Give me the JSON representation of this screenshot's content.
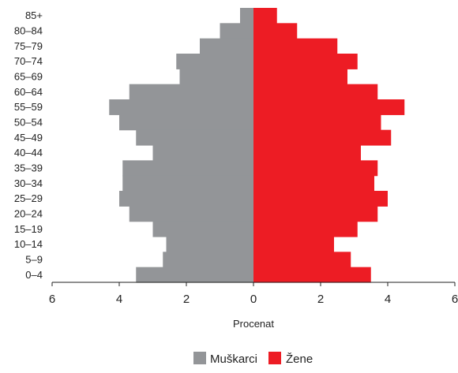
{
  "chart_data": {
    "type": "bar",
    "orientation": "horizontal",
    "layout": "population-pyramid",
    "categories": [
      "85+",
      "80–84",
      "75–79",
      "70–74",
      "65–69",
      "60–64",
      "55–59",
      "50–54",
      "45–49",
      "40–44",
      "35–39",
      "30–34",
      "25–29",
      "20–24",
      "15–19",
      "10–14",
      "5–9",
      "0–4"
    ],
    "series": [
      {
        "name": "Muškarci",
        "color": "#939598",
        "side": "left",
        "values": [
          0.4,
          1.0,
          1.6,
          2.3,
          2.2,
          3.7,
          4.3,
          4.0,
          3.5,
          3.0,
          3.9,
          3.9,
          4.0,
          3.7,
          3.0,
          2.6,
          2.7,
          3.5
        ]
      },
      {
        "name": "Žene",
        "color": "#ed1c24",
        "side": "right",
        "values": [
          0.7,
          1.3,
          2.5,
          3.1,
          2.8,
          3.7,
          4.5,
          3.8,
          4.1,
          3.2,
          3.7,
          3.6,
          4.0,
          3.7,
          3.1,
          2.4,
          2.9,
          3.5
        ]
      }
    ],
    "xlabel": "Procenat",
    "ylabel": "",
    "xlim": [
      -6,
      6
    ],
    "x_ticks": [
      -6,
      -4,
      -2,
      0,
      2,
      4,
      6
    ],
    "x_tick_labels": [
      "6",
      "4",
      "2",
      "0",
      "2",
      "4",
      "6"
    ],
    "grid": false,
    "legend_position": "bottom-center"
  }
}
